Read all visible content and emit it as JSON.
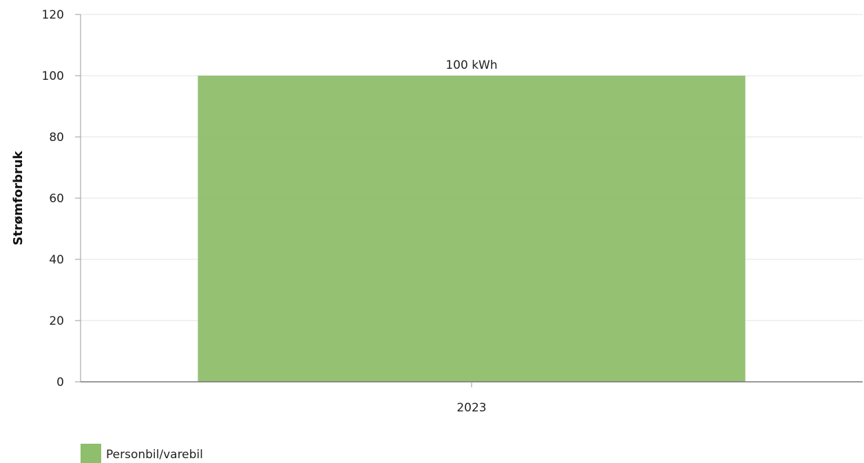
{
  "chart_data": {
    "type": "bar",
    "categories": [
      "2023"
    ],
    "series": [
      {
        "name": "Personbil/varebil",
        "values": [
          100
        ],
        "data_labels": [
          "100 kWh"
        ],
        "color": "#8fbe6c"
      }
    ],
    "xlabel": "",
    "ylabel": "Strømforbruk",
    "ylim": [
      0,
      120
    ],
    "yticks": [
      "0",
      "20",
      "40",
      "60",
      "80",
      "100",
      "120"
    ],
    "grid": true,
    "legend": "bottom-left"
  }
}
